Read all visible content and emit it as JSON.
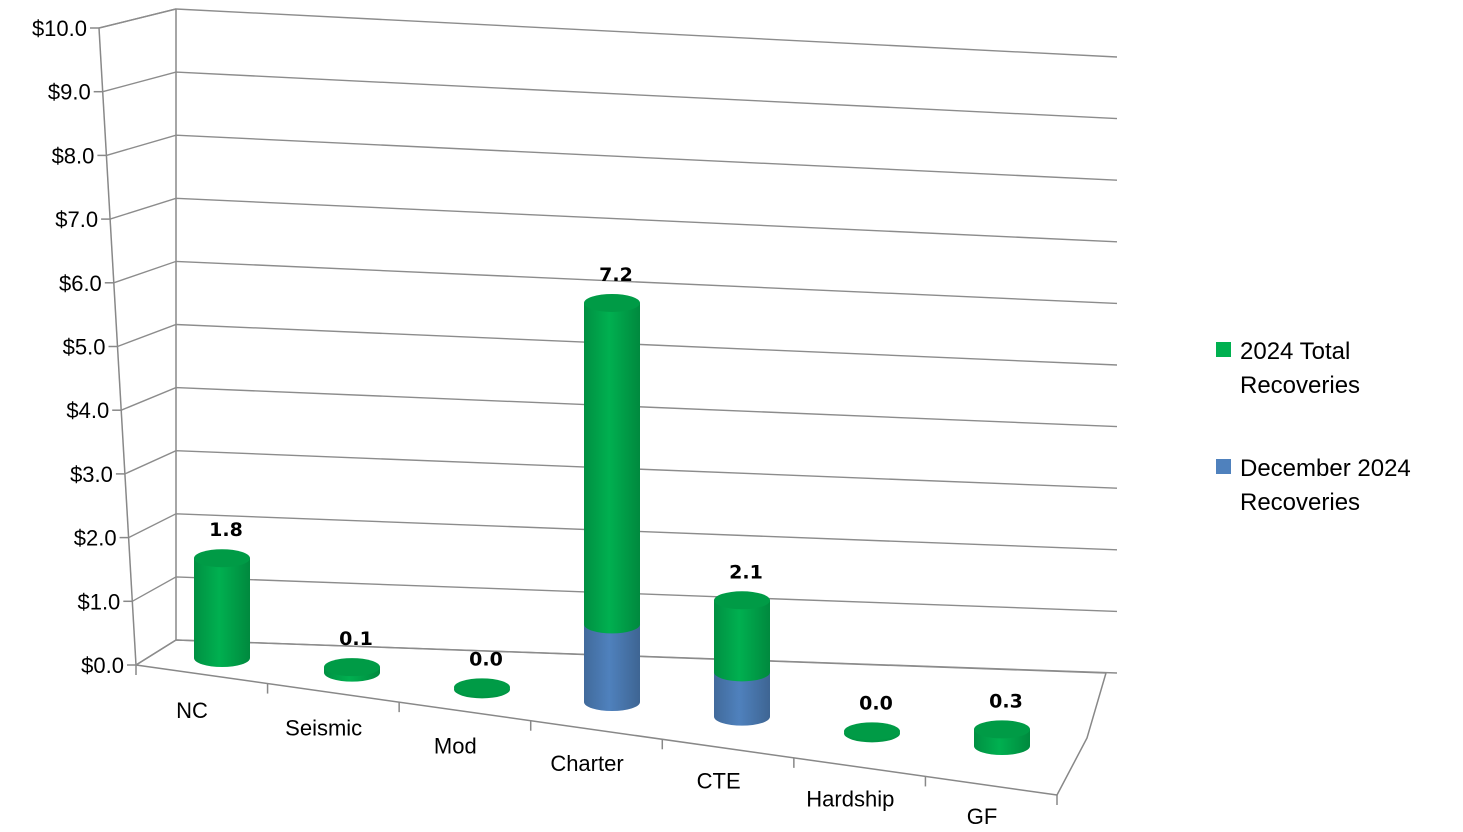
{
  "chart_data": {
    "type": "bar",
    "style": "3d-cylinder-stacked",
    "title": "",
    "xlabel": "",
    "ylabel": "",
    "ylim": [
      0,
      10
    ],
    "yticks": [
      "$0.0",
      "$1.0",
      "$2.0",
      "$3.0",
      "$4.0",
      "$5.0",
      "$6.0",
      "$7.0",
      "$8.0",
      "$9.0",
      "$10.0"
    ],
    "categories": [
      "NC",
      "Seismic",
      "Mod",
      "Charter",
      "CTE",
      "Hardship",
      "GF"
    ],
    "series": [
      {
        "name": "December 2024 Recoveries",
        "color": "#4f81bd",
        "values": [
          0,
          0,
          0,
          1.4,
          0.8,
          0,
          0
        ]
      },
      {
        "name": "2024 Total Recoveries",
        "color": "#00b050",
        "values": [
          1.8,
          0.1,
          0.0,
          5.8,
          1.3,
          0.0,
          0.3
        ]
      }
    ],
    "data_labels": [
      "1.8",
      "0.1",
      "0.0",
      "7.2",
      "2.1",
      "0.0",
      "0.3"
    ],
    "legend": {
      "position": "right",
      "entries": [
        {
          "lines": [
            "2024 Total",
            "Recoveries"
          ],
          "color": "#00b050"
        },
        {
          "lines": [
            "December 2024",
            "Recoveries"
          ],
          "color": "#4f81bd"
        }
      ]
    },
    "grid": true
  }
}
